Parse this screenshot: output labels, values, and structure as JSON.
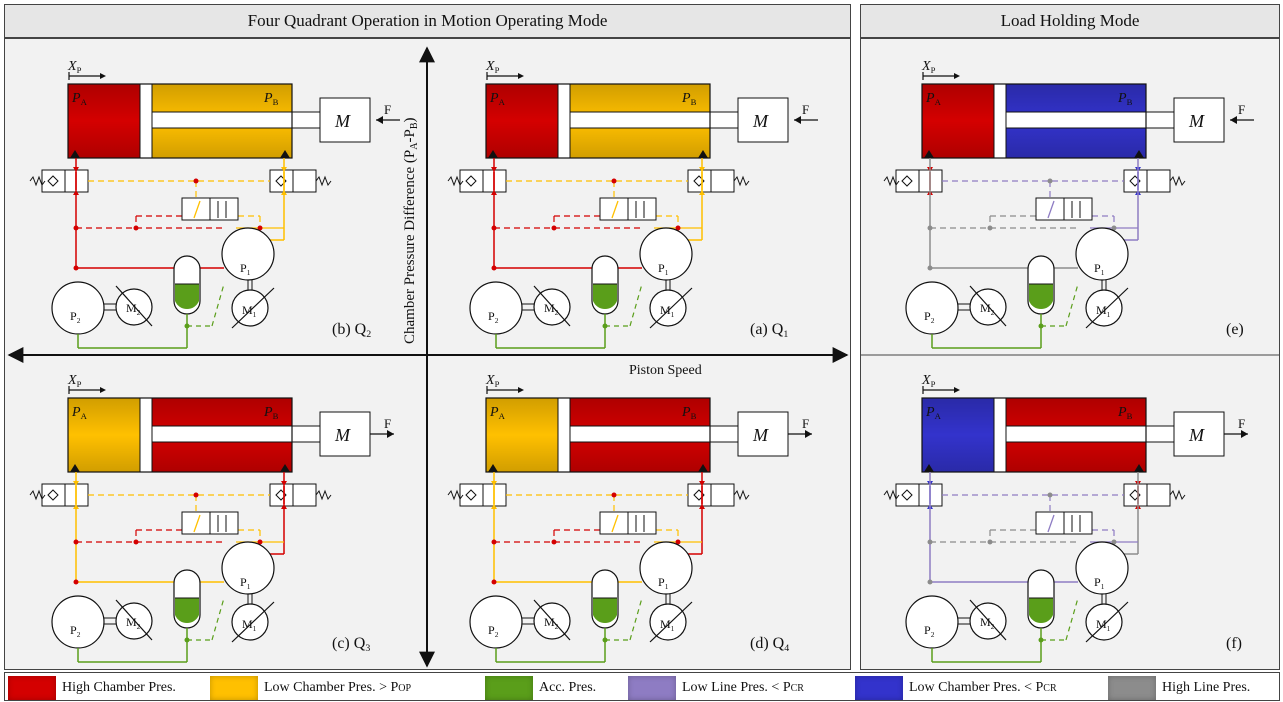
{
  "headers": {
    "motion": "Four Quadrant Operation in Motion Operating  Mode",
    "holding": "Load Holding Mode"
  },
  "axes": {
    "y_label": "Chamber Pressure Difference (PA-PB)",
    "x_label": "Piston Speed"
  },
  "symbols": {
    "xp": "X",
    "xp_sub": "P",
    "pa": "P",
    "pa_sub": "A",
    "pb": "P",
    "pb_sub": "B",
    "mass": "M",
    "force": "F",
    "p1": "P",
    "p1_sub": "1",
    "p2": "P",
    "p2_sub": "2",
    "m1": "M",
    "m1_sub": "1",
    "m2": "M",
    "m2_sub": "2"
  },
  "panels": [
    {
      "id": "b",
      "label": "(b) Q",
      "sub": "2",
      "chamber_a": "high",
      "chamber_b": "low",
      "force_dir": "left",
      "pump_left": "high",
      "pump_right": "low"
    },
    {
      "id": "a",
      "label": "(a) Q",
      "sub": "1",
      "chamber_a": "high",
      "chamber_b": "low",
      "force_dir": "left",
      "pump_left": "high",
      "pump_right": "low"
    },
    {
      "id": "e",
      "label": "(e)",
      "sub": "",
      "chamber_a": "high",
      "chamber_b": "lowcr",
      "force_dir": "left",
      "pump_left": "grayline",
      "pump_right": "lowline"
    },
    {
      "id": "c",
      "label": "(c) Q",
      "sub": "3",
      "chamber_a": "low",
      "chamber_b": "high",
      "force_dir": "right",
      "pump_left": "low",
      "pump_right": "high"
    },
    {
      "id": "d",
      "label": "(d) Q",
      "sub": "4",
      "chamber_a": "low",
      "chamber_b": "high",
      "force_dir": "right",
      "pump_left": "low",
      "pump_right": "high"
    },
    {
      "id": "f",
      "label": "(f)",
      "sub": "",
      "chamber_a": "lowcr",
      "chamber_b": "high",
      "force_dir": "right",
      "pump_left": "lowline",
      "pump_right": "grayline"
    }
  ],
  "colors": {
    "high": "#d40000",
    "low": "#ffc000",
    "acc": "#5a9e1a",
    "lowline": "#8e7cc3",
    "lowcr": "#3333cc",
    "grayline": "#8c8c8c"
  },
  "legend": [
    {
      "key": "high",
      "text": "High Chamber Pres.",
      "sub": ""
    },
    {
      "key": "low",
      "text": "Low Chamber Pres. > P",
      "sub": "OP"
    },
    {
      "key": "acc",
      "text": "Acc. Pres.",
      "sub": ""
    },
    {
      "key": "lowline",
      "text": "Low Line Pres. < P",
      "sub": "CR"
    },
    {
      "key": "lowcr",
      "text": "Low Chamber Pres. < P",
      "sub": "CR"
    },
    {
      "key": "grayline",
      "text": "High Line Pres.",
      "sub": ""
    }
  ]
}
